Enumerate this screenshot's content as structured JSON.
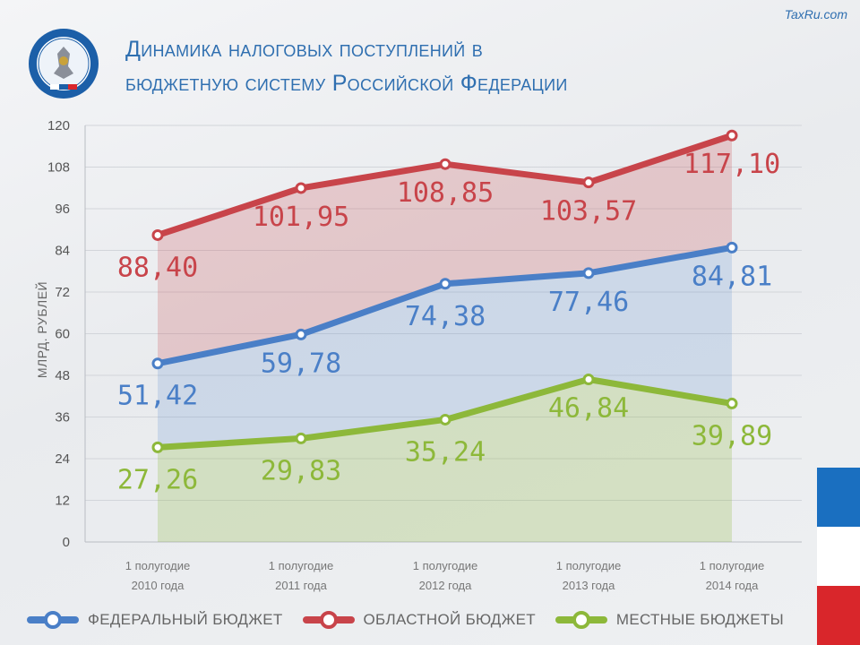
{
  "watermark": "TaxRu.com",
  "title": {
    "line1": "Динамика налоговых поступлений в",
    "line2": "бюджетную систему Российской Федерации"
  },
  "logo": {
    "icon": "tax-service-emblem-icon"
  },
  "colors": {
    "federal": "#4a7fc7",
    "regional": "#c8444a",
    "local": "#8db83a",
    "title": "#2f6fb0"
  },
  "chart_data": {
    "type": "area",
    "ylabel": "МЛРД. РУБЛЕЙ",
    "ylim": [
      0,
      120
    ],
    "yticks": [
      0,
      12,
      24,
      36,
      48,
      60,
      72,
      84,
      96,
      108,
      120
    ],
    "categories": [
      [
        "1 полугодие",
        "2010 года"
      ],
      [
        "1 полугодие",
        "2011 года"
      ],
      [
        "1 полугодие",
        "2012 года"
      ],
      [
        "1 полугодие",
        "2013 года"
      ],
      [
        "1 полугодие",
        "2014 года"
      ]
    ],
    "grid": true,
    "legend_position": "bottom",
    "series": [
      {
        "key": "regional",
        "name": "ОБЛАСТНОЙ БЮДЖЕТ",
        "values": [
          88.4,
          101.95,
          108.85,
          103.57,
          117.1
        ],
        "labels": [
          "88,40",
          "101,95",
          "108,85",
          "103,57",
          "117,10"
        ]
      },
      {
        "key": "federal",
        "name": "ФЕДЕРАЛЬНЫЙ БЮДЖЕТ",
        "values": [
          51.42,
          59.78,
          74.38,
          77.46,
          84.81
        ],
        "labels": [
          "51,42",
          "59,78",
          "74,38",
          "77,46",
          "84,81"
        ]
      },
      {
        "key": "local",
        "name": "МЕСТНЫЕ БЮДЖЕТЫ",
        "values": [
          27.26,
          29.83,
          35.24,
          46.84,
          39.89
        ],
        "labels": [
          "27,26",
          "29,83",
          "35,24",
          "46,84",
          "39,89"
        ]
      }
    ]
  },
  "legend": [
    {
      "key": "federal",
      "label": "ФЕДЕРАЛЬНЫЙ БЮДЖЕТ"
    },
    {
      "key": "regional",
      "label": "ОБЛАСТНОЙ БЮДЖЕТ"
    },
    {
      "key": "local",
      "label": "МЕСТНЫЕ БЮДЖЕТЫ"
    }
  ],
  "flag_colors": [
    "#1a6fc0",
    "#ffffff",
    "#d9262b"
  ]
}
